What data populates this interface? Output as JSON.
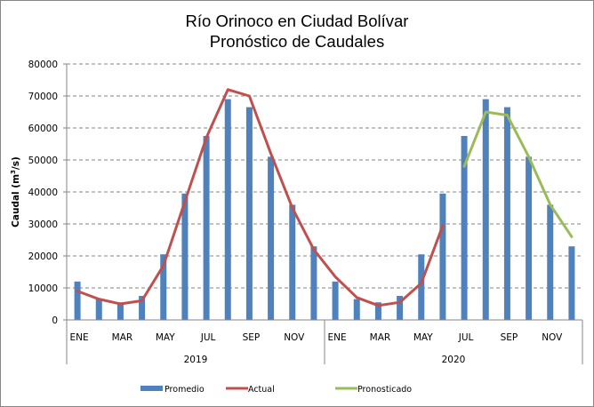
{
  "chart_data": {
    "type": "bar",
    "title": [
      "Río Orinoco en Ciudad Bolívar",
      "Pronóstico de Caudales"
    ],
    "xlabel": "",
    "ylabel": "Caudal (m³/s)",
    "ylabel_parts": {
      "base": "Caudal (m",
      "sup": "3",
      "tail": "/s)"
    },
    "ylim": [
      0,
      80000
    ],
    "yticks": [
      "0",
      "10000",
      "20000",
      "30000",
      "40000",
      "50000",
      "60000",
      "70000",
      "80000"
    ],
    "grid": true,
    "legend_position": "bottom",
    "groups": [
      {
        "label": "2019",
        "month_labels": [
          "ENE",
          "",
          "MAR",
          "",
          "MAY",
          "",
          "JUL",
          "",
          "SEP",
          "",
          "NOV",
          ""
        ]
      },
      {
        "label": "2020",
        "month_labels": [
          "ENE",
          "",
          "MAR",
          "",
          "MAY",
          "",
          "JUL",
          "",
          "SEP",
          "",
          "NOV",
          ""
        ]
      }
    ],
    "series": [
      {
        "name": "Promedio",
        "type": "bar",
        "color": "#4f81bd",
        "values": [
          12000,
          6500,
          5500,
          7500,
          20500,
          39500,
          57500,
          69000,
          66500,
          51000,
          36000,
          23000,
          12000,
          6500,
          5500,
          7500,
          20500,
          39500,
          57500,
          69000,
          66500,
          51000,
          36000,
          23000
        ]
      },
      {
        "name": "Actual",
        "type": "line",
        "color": "#c0504d",
        "values": [
          9000,
          6500,
          5000,
          6000,
          17000,
          37000,
          57000,
          72000,
          70000,
          52000,
          35000,
          22000,
          13500,
          7000,
          4500,
          5500,
          11500,
          29500,
          null,
          null,
          null,
          null,
          null,
          null
        ]
      },
      {
        "name": "Pronosticado",
        "type": "line",
        "color": "#9bbb59",
        "values": [
          null,
          null,
          null,
          null,
          null,
          null,
          null,
          null,
          null,
          null,
          null,
          null,
          null,
          null,
          null,
          null,
          null,
          null,
          48000,
          65000,
          64000,
          51000,
          36000,
          26000
        ]
      }
    ]
  }
}
